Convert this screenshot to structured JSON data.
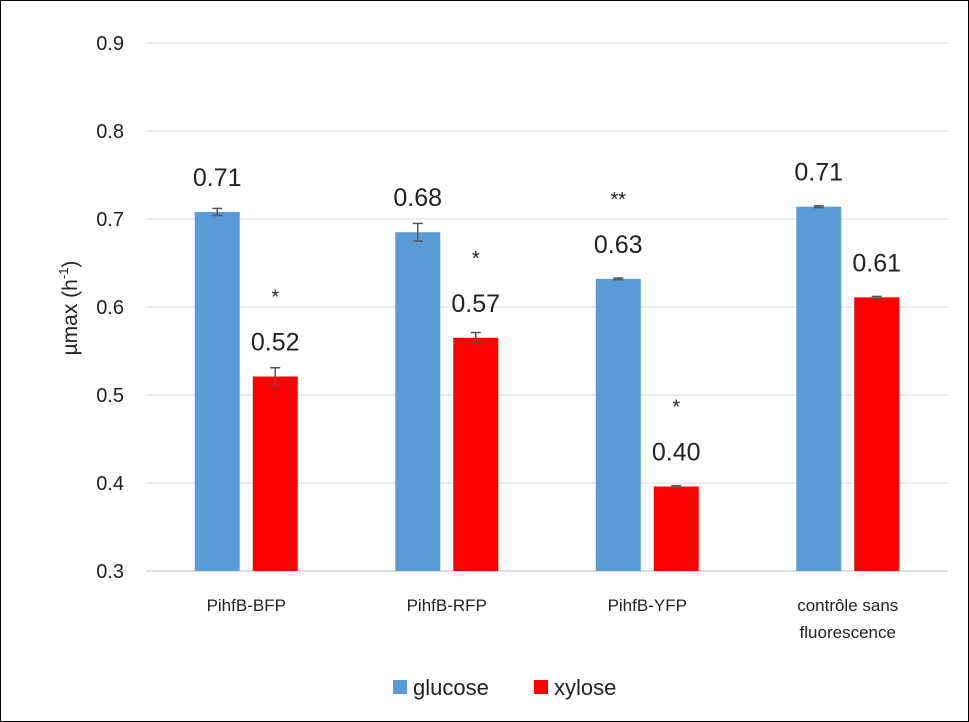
{
  "chart_data": {
    "type": "bar",
    "ylabel": "µmax (h",
    "ylabel_sup": "-1",
    "ylabel_close": ")",
    "ylim": [
      0.3,
      0.9
    ],
    "yticks": [
      "0.9",
      "0.8",
      "0.7",
      "0.6",
      "0.5",
      "0.4",
      "0.3"
    ],
    "ytick_values": [
      0.9,
      0.8,
      0.7,
      0.6,
      0.5,
      0.4,
      0.3
    ],
    "grid": true,
    "legend_position": "bottom",
    "categories": [
      {
        "line1": "PihfB-BFP",
        "line2": ""
      },
      {
        "line1": "PihfB-RFP",
        "line2": ""
      },
      {
        "line1": "PihfB-YFP",
        "line2": ""
      },
      {
        "line1": "contrôle sans",
        "line2": "fluorescence"
      }
    ],
    "series": [
      {
        "name": "glucose",
        "color": "#5B9BD5",
        "values": [
          0.708,
          0.685,
          0.632,
          0.714
        ],
        "errors": [
          0.004,
          0.01,
          0.001,
          0.001
        ],
        "labels": [
          "0.71",
          "0.68",
          "0.63",
          "0.71"
        ],
        "significance": [
          "",
          "",
          "**",
          ""
        ]
      },
      {
        "name": "xylose",
        "color": "#FF0000",
        "values": [
          0.521,
          0.565,
          0.396,
          0.611
        ],
        "errors": [
          0.01,
          0.006,
          0.001,
          0.001
        ],
        "labels": [
          "0.52",
          "0.57",
          "0.40",
          "0.61"
        ],
        "significance": [
          "*",
          "*",
          "*",
          ""
        ]
      }
    ]
  }
}
